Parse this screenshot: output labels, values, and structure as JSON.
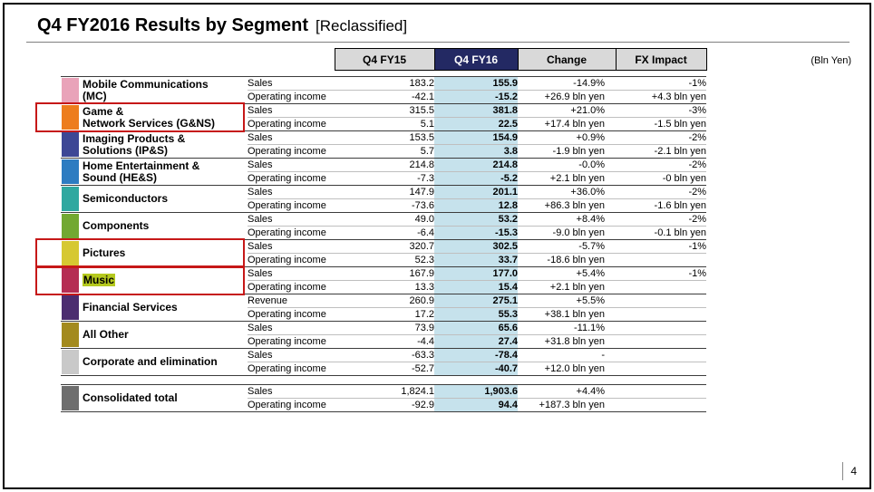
{
  "slide": {
    "title": "Q4 FY2016  Results by Segment",
    "title_suffix": "[Reclassified]",
    "unit_note": "(Bln Yen)",
    "page_number": "4"
  },
  "annotations": {
    "annotation_color": "#c61818",
    "highlighted_segments": [
      "Game & Network Services (G&NS)",
      "Pictures",
      "Music"
    ],
    "music_text_highlight_color": "#b5c91e"
  },
  "table": {
    "columns": [
      "Q4 FY15",
      "Q4 FY16",
      "Change",
      "FX Impact"
    ],
    "accent_colors": {
      "fy16_header_bg": "#232963",
      "fy16_column_bg": "#c6e2ec",
      "header_bg": "#d9d9d9"
    },
    "segments": [
      {
        "name_lines": [
          "Mobile Communications",
          "(MC)"
        ],
        "color": "#e9a3b9",
        "annotated": false,
        "rows": [
          {
            "label": "Sales",
            "fy15": "183.2",
            "fy16": "155.9",
            "change": "-14.9%",
            "fx": "-1%"
          },
          {
            "label": "Operating income",
            "fy15": "-42.1",
            "fy16": "-15.2",
            "change": "+26.9 bln yen",
            "fx": "+4.3 bln yen"
          }
        ]
      },
      {
        "name_lines": [
          "Game &",
          "Network Services (G&NS)"
        ],
        "color": "#ed7d1d",
        "annotated": true,
        "rows": [
          {
            "label": "Sales",
            "fy15": "315.5",
            "fy16": "381.8",
            "change": "+21.0%",
            "fx": "-3%"
          },
          {
            "label": "Operating income",
            "fy15": "5.1",
            "fy16": "22.5",
            "change": "+17.4 bln yen",
            "fx": "-1.5 bln yen"
          }
        ]
      },
      {
        "name_lines": [
          "Imaging Products &",
          "Solutions (IP&S)"
        ],
        "color": "#3d4795",
        "annotated": false,
        "rows": [
          {
            "label": "Sales",
            "fy15": "153.5",
            "fy16": "154.9",
            "change": "+0.9%",
            "fx": "-2%"
          },
          {
            "label": "Operating income",
            "fy15": "5.7",
            "fy16": "3.8",
            "change": "-1.9 bln yen",
            "fx": "-2.1 bln yen"
          }
        ]
      },
      {
        "name_lines": [
          "Home Entertainment &",
          "Sound (HE&S)"
        ],
        "color": "#2d7cc1",
        "annotated": false,
        "rows": [
          {
            "label": "Sales",
            "fy15": "214.8",
            "fy16": "214.8",
            "change": "-0.0%",
            "fx": "-2%"
          },
          {
            "label": "Operating income",
            "fy15": "-7.3",
            "fy16": "-5.2",
            "change": "+2.1 bln yen",
            "fx": "-0 bln yen"
          }
        ]
      },
      {
        "name_lines": [
          "Semiconductors"
        ],
        "color": "#2fa8a0",
        "annotated": false,
        "rows": [
          {
            "label": "Sales",
            "fy15": "147.9",
            "fy16": "201.1",
            "change": "+36.0%",
            "fx": "-2%"
          },
          {
            "label": "Operating income",
            "fy15": "-73.6",
            "fy16": "12.8",
            "change": "+86.3 bln yen",
            "fx": "-1.6 bln yen"
          }
        ]
      },
      {
        "name_lines": [
          "Components"
        ],
        "color": "#72a832",
        "annotated": false,
        "rows": [
          {
            "label": "Sales",
            "fy15": "49.0",
            "fy16": "53.2",
            "change": "+8.4%",
            "fx": "-2%"
          },
          {
            "label": "Operating income",
            "fy15": "-6.4",
            "fy16": "-15.3",
            "change": "-9.0 bln yen",
            "fx": "-0.1 bln yen"
          }
        ]
      },
      {
        "name_lines": [
          "Pictures"
        ],
        "color": "#d6c832",
        "annotated": true,
        "rows": [
          {
            "label": "Sales",
            "fy15": "320.7",
            "fy16": "302.5",
            "change": "-5.7%",
            "fx": "-1%"
          },
          {
            "label": "Operating income",
            "fy15": "52.3",
            "fy16": "33.7",
            "change": "-18.6 bln yen",
            "fx": ""
          }
        ]
      },
      {
        "name_lines": [
          "Music"
        ],
        "color": "#b52d53",
        "annotated": true,
        "text_highlight": true,
        "rows": [
          {
            "label": "Sales",
            "fy15": "167.9",
            "fy16": "177.0",
            "change": "+5.4%",
            "fx": "-1%"
          },
          {
            "label": "Operating income",
            "fy15": "13.3",
            "fy16": "15.4",
            "change": "+2.1 bln yen",
            "fx": ""
          }
        ]
      },
      {
        "name_lines": [
          "Financial Services"
        ],
        "color": "#4c2d70",
        "annotated": false,
        "rows": [
          {
            "label": "Revenue",
            "fy15": "260.9",
            "fy16": "275.1",
            "change": "+5.5%",
            "fx": ""
          },
          {
            "label": "Operating income",
            "fy15": "17.2",
            "fy16": "55.3",
            "change": "+38.1 bln yen",
            "fx": ""
          }
        ]
      },
      {
        "name_lines": [
          "All Other"
        ],
        "color": "#a38a1e",
        "annotated": false,
        "rows": [
          {
            "label": "Sales",
            "fy15": "73.9",
            "fy16": "65.6",
            "change": "-11.1%",
            "fx": ""
          },
          {
            "label": "Operating income",
            "fy15": "-4.4",
            "fy16": "27.4",
            "change": "+31.8 bln yen",
            "fx": ""
          }
        ]
      },
      {
        "name_lines": [
          "Corporate and elimination"
        ],
        "color": "#c9c9c9",
        "annotated": false,
        "rows": [
          {
            "label": "Sales",
            "fy15": "-63.3",
            "fy16": "-78.4",
            "change": "-",
            "fx": ""
          },
          {
            "label": "Operating income",
            "fy15": "-52.7",
            "fy16": "-40.7",
            "change": "+12.0 bln yen",
            "fx": ""
          }
        ]
      }
    ],
    "total": {
      "name_lines": [
        "Consolidated total"
      ],
      "color": "#6e6e6e",
      "annotated": false,
      "rows": [
        {
          "label": "Sales",
          "fy15": "1,824.1",
          "fy16": "1,903.6",
          "change": "+4.4%",
          "fx": ""
        },
        {
          "label": "Operating income",
          "fy15": "-92.9",
          "fy16": "94.4",
          "change": "+187.3 bln yen",
          "fx": ""
        }
      ]
    }
  }
}
